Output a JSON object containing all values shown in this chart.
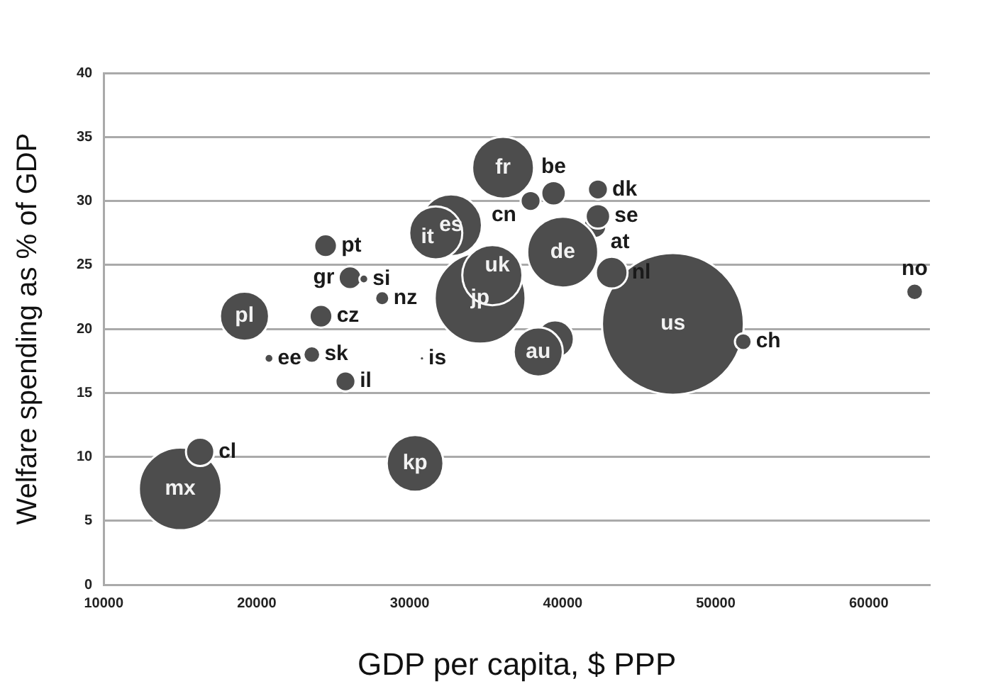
{
  "chart_data": {
    "type": "bubble",
    "xlabel": "GDP per capita, $ PPP",
    "ylabel": "Welfare spending as % of GDP",
    "series": [
      {
        "name": "us",
        "color": "#4d4d4d",
        "x": [
          47200
        ],
        "values": [
          20.4
        ],
        "sizes": [
          1
        ]
      },
      {
        "name": "ch",
        "color": "#4d4d4d",
        "x": [
          51800
        ],
        "values": [
          19.0
        ],
        "sizes": [
          0.014
        ]
      },
      {
        "name": "jp",
        "color": "#4d4d4d",
        "x": [
          34600
        ],
        "values": [
          22.4
        ],
        "sizes": [
          0.41
        ]
      },
      {
        "name": "uk",
        "color": "#4d4d4d",
        "x": [
          35400
        ],
        "values": [
          24.2
        ],
        "sizes": [
          0.18
        ]
      },
      {
        "name": "es",
        "color": "#4d4d4d",
        "x": [
          32700
        ],
        "values": [
          28.1
        ],
        "sizes": [
          0.19
        ]
      },
      {
        "name": "it",
        "color": "#4d4d4d",
        "x": [
          31700
        ],
        "values": [
          27.5
        ],
        "sizes": [
          0.14
        ]
      },
      {
        "name": "fr",
        "color": "#4d4d4d",
        "x": [
          36100
        ],
        "values": [
          32.6
        ],
        "sizes": [
          0.19
        ]
      },
      {
        "name": "cn",
        "color": "#4d4d4d",
        "x": [
          37900
        ],
        "values": [
          30.0
        ],
        "sizes": [
          0.02
        ]
      },
      {
        "name": "be",
        "color": "#4d4d4d",
        "x": [
          39400
        ],
        "values": [
          30.6
        ],
        "sizes": [
          0.03
        ]
      },
      {
        "name": "dk",
        "color": "#4d4d4d",
        "x": [
          42300
        ],
        "values": [
          30.9
        ],
        "sizes": [
          0.02
        ]
      },
      {
        "name": "at",
        "color": "#4d4d4d",
        "x": [
          42100
        ],
        "values": [
          28.0
        ],
        "sizes": [
          0.026
        ]
      },
      {
        "name": "se",
        "color": "#4d4d4d",
        "x": [
          42300
        ],
        "values": [
          28.8
        ],
        "sizes": [
          0.03
        ]
      },
      {
        "color": "#4d4d4d",
        "x": [
          39500
        ],
        "values": [
          19.2
        ],
        "sizes": [
          0.07
        ]
      },
      {
        "name": "au",
        "color": "#4d4d4d",
        "x": [
          38400
        ],
        "values": [
          18.2
        ],
        "sizes": [
          0.12
        ]
      },
      {
        "name": "de",
        "color": "#4d4d4d",
        "x": [
          40000
        ],
        "values": [
          26.0
        ],
        "sizes": [
          0.25
        ]
      },
      {
        "name": "nl",
        "color": "#4d4d4d",
        "x": [
          43200
        ],
        "values": [
          24.4
        ],
        "sizes": [
          0.05
        ]
      },
      {
        "name": "no",
        "color": "#4d4d4d",
        "x": [
          63000
        ],
        "values": [
          22.9
        ],
        "sizes": [
          0.014
        ]
      },
      {
        "name": "mx",
        "color": "#4d4d4d",
        "x": [
          15000
        ],
        "values": [
          7.5
        ],
        "sizes": [
          0.34
        ]
      },
      {
        "name": "cl",
        "color": "#4d4d4d",
        "x": [
          16300
        ],
        "values": [
          10.4
        ],
        "sizes": [
          0.04
        ]
      },
      {
        "name": "kp",
        "color": "#4d4d4d",
        "x": [
          30350
        ],
        "values": [
          9.5
        ],
        "sizes": [
          0.16
        ]
      },
      {
        "name": "il",
        "color": "#4d4d4d",
        "x": [
          25800
        ],
        "values": [
          15.9
        ],
        "sizes": [
          0.02
        ]
      },
      {
        "name": "is",
        "color": "#4d4d4d",
        "x": [
          30800
        ],
        "values": [
          17.7
        ],
        "sizes": [
          0.001
        ]
      },
      {
        "name": "ee",
        "color": "#4d4d4d",
        "x": [
          20800
        ],
        "values": [
          17.7
        ],
        "sizes": [
          0.004
        ]
      },
      {
        "name": "sk",
        "color": "#4d4d4d",
        "x": [
          23600
        ],
        "values": [
          18.0
        ],
        "sizes": [
          0.014
        ]
      },
      {
        "name": "pl",
        "color": "#4d4d4d",
        "x": [
          19200
        ],
        "values": [
          21.0
        ],
        "sizes": [
          0.12
        ]
      },
      {
        "name": "cz",
        "color": "#4d4d4d",
        "x": [
          24200
        ],
        "values": [
          21.0
        ],
        "sizes": [
          0.026
        ]
      },
      {
        "name": "pt",
        "color": "#4d4d4d",
        "x": [
          24500
        ],
        "values": [
          26.5
        ],
        "sizes": [
          0.026
        ]
      },
      {
        "name": "gr",
        "color": "#4d4d4d",
        "x": [
          26100
        ],
        "values": [
          24.0
        ],
        "sizes": [
          0.026
        ]
      },
      {
        "name": "si",
        "color": "#4d4d4d",
        "x": [
          27000
        ],
        "values": [
          23.9
        ],
        "sizes": [
          0.004
        ]
      },
      {
        "name": "nz",
        "color": "#4d4d4d",
        "x": [
          28200
        ],
        "values": [
          22.4
        ],
        "sizes": [
          0.01
        ]
      }
    ],
    "xlim": [
      10000,
      64000
    ],
    "xticks": [
      10000,
      20000,
      30000,
      40000,
      50000,
      60000
    ],
    "ylim": [
      0,
      40
    ],
    "yticks": [
      0,
      5,
      10,
      15,
      20,
      25,
      30,
      35,
      40
    ],
    "grid": "y"
  }
}
